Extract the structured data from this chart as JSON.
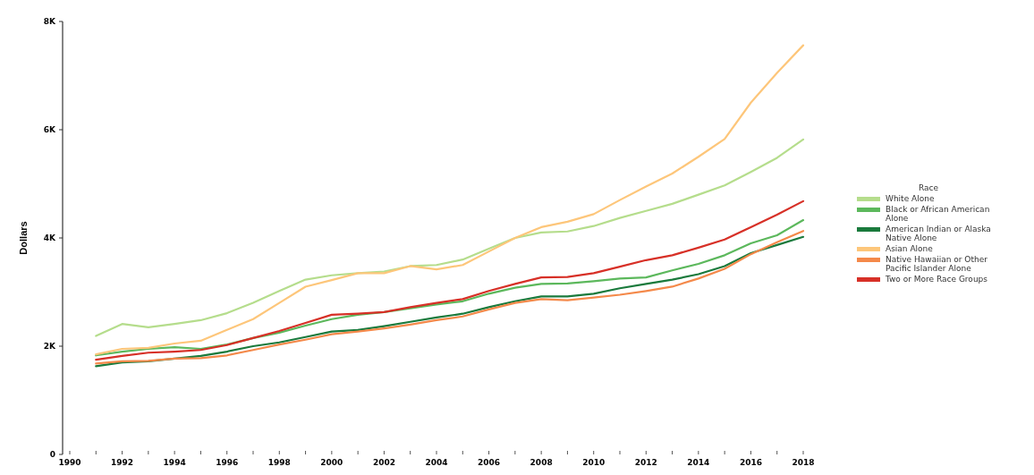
{
  "chart_data": {
    "type": "line",
    "ylabel": "Dollars",
    "legend_title": "Race",
    "legend": "right",
    "x": [
      1991,
      1992,
      1993,
      1994,
      1995,
      1996,
      1997,
      1998,
      1999,
      2000,
      2001,
      2002,
      2003,
      2004,
      2005,
      2006,
      2007,
      2008,
      2009,
      2010,
      2011,
      2012,
      2013,
      2014,
      2015,
      2016,
      2017,
      2018
    ],
    "xlim": [
      1990,
      2018
    ],
    "xticks": [
      1990,
      {
        "value": 1991,
        "label": null
      },
      1992,
      {
        "value": 1993,
        "label": null
      },
      1994,
      {
        "value": 1995,
        "label": null
      },
      1996,
      {
        "value": 1997,
        "label": null
      },
      1998,
      {
        "value": 1999,
        "label": null
      },
      2000,
      {
        "value": 2001,
        "label": null
      },
      2002,
      {
        "value": 2003,
        "label": null
      },
      2004,
      {
        "value": 2005,
        "label": null
      },
      2006,
      {
        "value": 2007,
        "label": null
      },
      2008,
      {
        "value": 2009,
        "label": null
      },
      2010,
      {
        "value": 2011,
        "label": null
      },
      2012,
      {
        "value": 2013,
        "label": null
      },
      2014,
      {
        "value": 2015,
        "label": null
      },
      2016,
      {
        "value": 2017,
        "label": null
      },
      2018
    ],
    "ylim": [
      0,
      8000
    ],
    "yticks": [
      0,
      {
        "value": 2000,
        "label": "2K"
      },
      {
        "value": 4000,
        "label": "4K"
      },
      {
        "value": 6000,
        "label": "6K"
      },
      {
        "value": 8000,
        "label": "8K"
      }
    ],
    "grid": false,
    "marker": "none",
    "line_style": "solid",
    "series": [
      {
        "name": "White Alone",
        "color": "#b5dd8c",
        "values": [
          2190,
          2410,
          2350,
          2410,
          2480,
          2610,
          2800,
          3020,
          3230,
          3310,
          3350,
          3380,
          3480,
          3500,
          3600,
          3800,
          4000,
          4100,
          4120,
          4220,
          4370,
          4500,
          4630,
          4800,
          4970,
          5220,
          5480,
          5820
        ]
      },
      {
        "name": "Black or African American Alone",
        "color": "#5cb85c",
        "values": [
          1830,
          1900,
          1950,
          1980,
          1950,
          2030,
          2150,
          2250,
          2380,
          2500,
          2580,
          2630,
          2700,
          2770,
          2830,
          2970,
          3080,
          3150,
          3160,
          3200,
          3250,
          3270,
          3400,
          3520,
          3680,
          3900,
          4050,
          4330
        ]
      },
      {
        "name": "American Indian or Alaska Native Alone",
        "color": "#1a7a3c",
        "values": [
          1630,
          1700,
          1720,
          1770,
          1820,
          1900,
          2000,
          2070,
          2170,
          2270,
          2300,
          2370,
          2450,
          2530,
          2600,
          2720,
          2830,
          2920,
          2920,
          2970,
          3070,
          3150,
          3230,
          3330,
          3480,
          3720,
          3870,
          4020
        ]
      },
      {
        "name": "Asian Alone",
        "color": "#fdc67a",
        "values": [
          1850,
          1950,
          1970,
          2050,
          2100,
          2300,
          2500,
          2800,
          3100,
          3220,
          3350,
          3350,
          3480,
          3420,
          3500,
          3750,
          4000,
          4200,
          4300,
          4440,
          4700,
          4950,
          5190,
          5500,
          5830,
          6500,
          7050,
          7560
        ]
      },
      {
        "name": "Native Hawaiian or Other Pacific Islander Alone",
        "color": "#f4894a",
        "values": [
          1680,
          1720,
          1730,
          1770,
          1780,
          1830,
          1930,
          2030,
          2120,
          2220,
          2270,
          2330,
          2400,
          2480,
          2550,
          2680,
          2800,
          2870,
          2850,
          2900,
          2950,
          3020,
          3100,
          3250,
          3430,
          3700,
          3920,
          4130
        ]
      },
      {
        "name": "Two or More Race Groups",
        "color": "#d73027",
        "values": [
          1750,
          1820,
          1880,
          1900,
          1930,
          2020,
          2150,
          2280,
          2430,
          2580,
          2600,
          2630,
          2720,
          2800,
          2870,
          3020,
          3150,
          3270,
          3280,
          3350,
          3470,
          3590,
          3680,
          3820,
          3970,
          4200,
          4430,
          4680
        ]
      }
    ]
  }
}
